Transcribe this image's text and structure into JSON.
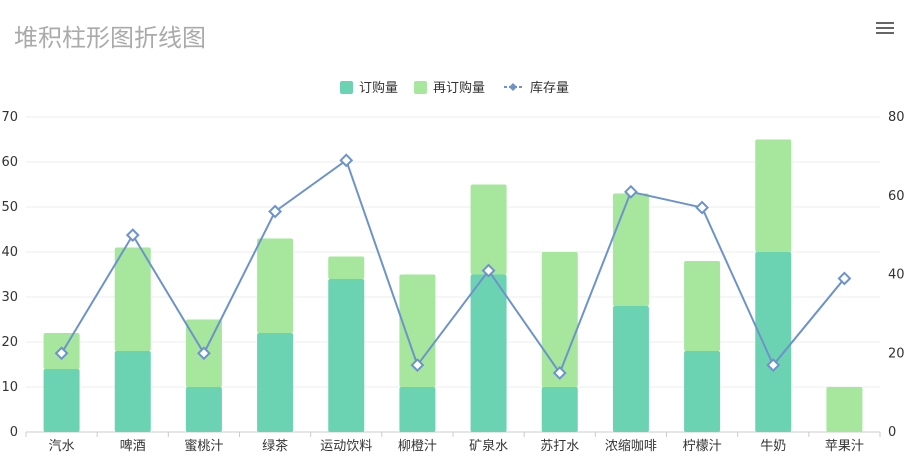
{
  "title": "堆积柱形图折线图",
  "toolbox": {
    "icon": "menu-icon"
  },
  "chart_data": {
    "type": "bar+line",
    "categories": [
      "汽水",
      "啤酒",
      "蜜桃汁",
      "绿茶",
      "运动饮料",
      "柳橙汁",
      "矿泉水",
      "苏打水",
      "浓缩咖啡",
      "柠檬汁",
      "牛奶",
      "苹果汁"
    ],
    "series": [
      {
        "name": "订购量",
        "type": "bar",
        "stack": "total",
        "color": "#6cd3b2",
        "values": [
          14,
          18,
          10,
          22,
          34,
          10,
          35,
          10,
          28,
          18,
          40,
          0
        ]
      },
      {
        "name": "再订购量",
        "type": "bar",
        "stack": "total",
        "color": "#a6e69d",
        "values": [
          8,
          23,
          15,
          21,
          5,
          25,
          20,
          30,
          25,
          20,
          25,
          10
        ]
      },
      {
        "name": "库存量",
        "type": "line",
        "yAxis": "right",
        "color": "#6d93c9",
        "values": [
          20,
          50,
          20,
          56,
          69,
          17,
          41,
          15,
          61,
          57,
          17,
          39
        ]
      }
    ],
    "y_left": {
      "min": 0,
      "max": 70,
      "ticks": [
        0,
        10,
        20,
        30,
        40,
        50,
        60,
        70
      ]
    },
    "y_right": {
      "min": 0,
      "max": 80,
      "ticks": [
        0,
        20,
        40,
        60,
        80
      ]
    },
    "legend_position": "top-center",
    "grid": true
  }
}
